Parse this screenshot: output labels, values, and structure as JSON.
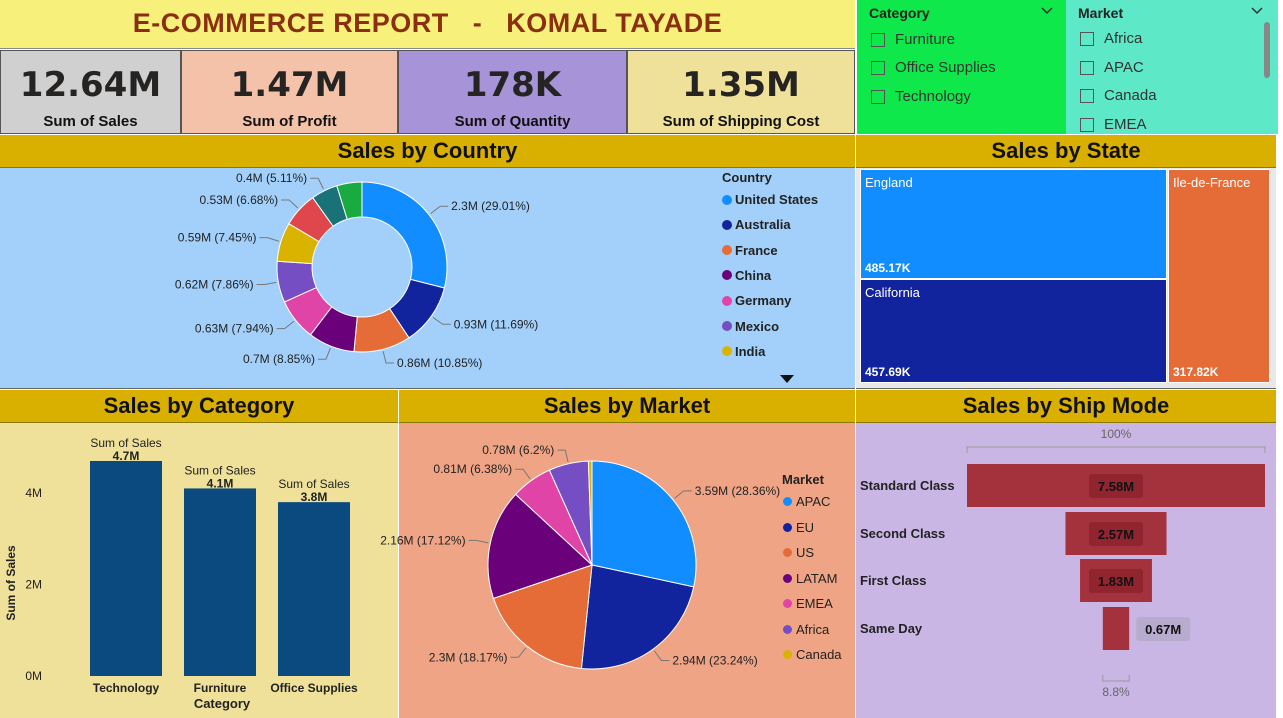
{
  "title": "E-COMMERCE REPORT   -   KOMAL TAYADE",
  "kpis": [
    {
      "value": "12.64M",
      "label": "Sum of Sales",
      "bg": "#d0d0d0"
    },
    {
      "value": "1.47M",
      "label": "Sum of Profit",
      "bg": "#f4c2a8"
    },
    {
      "value": "178K",
      "label": "Sum of Quantity",
      "bg": "#a793d8"
    },
    {
      "value": "1.35M",
      "label": "Sum of Shipping Cost",
      "bg": "#efe19a"
    }
  ],
  "category_slicer": {
    "header": "Category",
    "items": [
      "Furniture",
      "Office Supplies",
      "Technology"
    ],
    "bg": "#0fe84a"
  },
  "market_slicer": {
    "header": "Market",
    "items": [
      "Africa",
      "APAC",
      "Canada",
      "EMEA"
    ],
    "bg": "#5de8c7"
  },
  "country_panel": {
    "title": "Sales by Country",
    "legend_title": "Country",
    "legend": [
      {
        "name": "United States",
        "color": "#118dff"
      },
      {
        "name": "Australia",
        "color": "#12239e"
      },
      {
        "name": "France",
        "color": "#e66c37"
      },
      {
        "name": "China",
        "color": "#6b007b"
      },
      {
        "name": "Germany",
        "color": "#e044a7"
      },
      {
        "name": "Mexico",
        "color": "#744ec2"
      },
      {
        "name": "India",
        "color": "#d9b300"
      }
    ]
  },
  "state_panel": {
    "title": "Sales by State",
    "cells": [
      {
        "name": "England",
        "value": "485.17K",
        "color": "#118dff"
      },
      {
        "name": "California",
        "value": "457.69K",
        "color": "#12239e"
      },
      {
        "name": "Ile-de-France",
        "value": "317.82K",
        "color": "#e66c37"
      }
    ]
  },
  "category_panel": {
    "title": "Sales by Category",
    "data_label_prefix": "Sum of Sales"
  },
  "market_panel": {
    "title": "Sales by Market",
    "legend_title": "Market"
  },
  "shipmode_panel": {
    "title": "Sales by Ship Mode",
    "top_pct": "100%",
    "bottom_pct": "8.8%"
  },
  "chart_data": [
    {
      "type": "pie",
      "variant": "donut",
      "title": "Sales by Country",
      "legend_title": "Country",
      "slices": [
        {
          "name": "United States",
          "value": 2.3,
          "label": "2.3M (29.01%)",
          "color": "#118dff"
        },
        {
          "name": "Australia",
          "value": 0.93,
          "label": "0.93M (11.69%)",
          "color": "#12239e"
        },
        {
          "name": "France",
          "value": 0.86,
          "label": "0.86M (10.85%)",
          "color": "#e66c37"
        },
        {
          "name": "China",
          "value": 0.7,
          "label": "0.7M (8.85%)",
          "color": "#6b007b"
        },
        {
          "name": "Germany",
          "value": 0.63,
          "label": "0.63M (7.94%)",
          "color": "#e044a7"
        },
        {
          "name": "Mexico",
          "value": 0.62,
          "label": "0.62M (7.86%)",
          "color": "#744ec2"
        },
        {
          "name": "India",
          "value": 0.59,
          "label": "0.59M (7.45%)",
          "color": "#d9b300"
        },
        {
          "name": "",
          "value": 0.53,
          "label": "0.53M (6.68%)",
          "color": "#e0474c"
        },
        {
          "name": "",
          "value": 0.4,
          "label": "0.4M (5.11%)",
          "color": "#197278"
        },
        {
          "name": "",
          "value": 0.38,
          "label": "",
          "color": "#1aab40"
        }
      ]
    },
    {
      "type": "bar",
      "title": "Sales by Category",
      "categories": [
        "Technology",
        "Furniture",
        "Office Supplies"
      ],
      "values": [
        4.7,
        4.1,
        3.8
      ],
      "value_labels": [
        "4.7M",
        "4.1M",
        "3.8M"
      ],
      "xlabel": "Category",
      "ylabel": "Sum of Sales",
      "yticks": [
        "0M",
        "2M",
        "4M"
      ],
      "ylim": [
        0,
        5
      ],
      "color": "#0b4a7e"
    },
    {
      "type": "pie",
      "title": "Sales by Market",
      "legend_title": "Market",
      "slices": [
        {
          "name": "APAC",
          "value": 3.59,
          "label": "3.59M (28.36%)",
          "color": "#118dff"
        },
        {
          "name": "EU",
          "value": 2.94,
          "label": "2.94M (23.24%)",
          "color": "#12239e"
        },
        {
          "name": "US",
          "value": 2.3,
          "label": "2.3M (18.17%)",
          "color": "#e66c37"
        },
        {
          "name": "LATAM",
          "value": 2.16,
          "label": "2.16M (17.12%)",
          "color": "#6b007b"
        },
        {
          "name": "EMEA",
          "value": 0.81,
          "label": "0.81M (6.38%)",
          "color": "#e044a7"
        },
        {
          "name": "Africa",
          "value": 0.78,
          "label": "0.78M (6.2%)",
          "color": "#744ec2"
        },
        {
          "name": "Canada",
          "value": 0.07,
          "label": "",
          "color": "#d9b300"
        }
      ]
    },
    {
      "type": "bar",
      "variant": "funnel",
      "title": "Sales by Ship Mode",
      "categories": [
        "Standard Class",
        "Second Class",
        "First Class",
        "Same Day"
      ],
      "values": [
        7.58,
        2.57,
        1.83,
        0.67
      ],
      "value_labels": [
        "7.58M",
        "2.57M",
        "1.83M",
        "0.67M"
      ],
      "color": "#a4323d"
    }
  ]
}
